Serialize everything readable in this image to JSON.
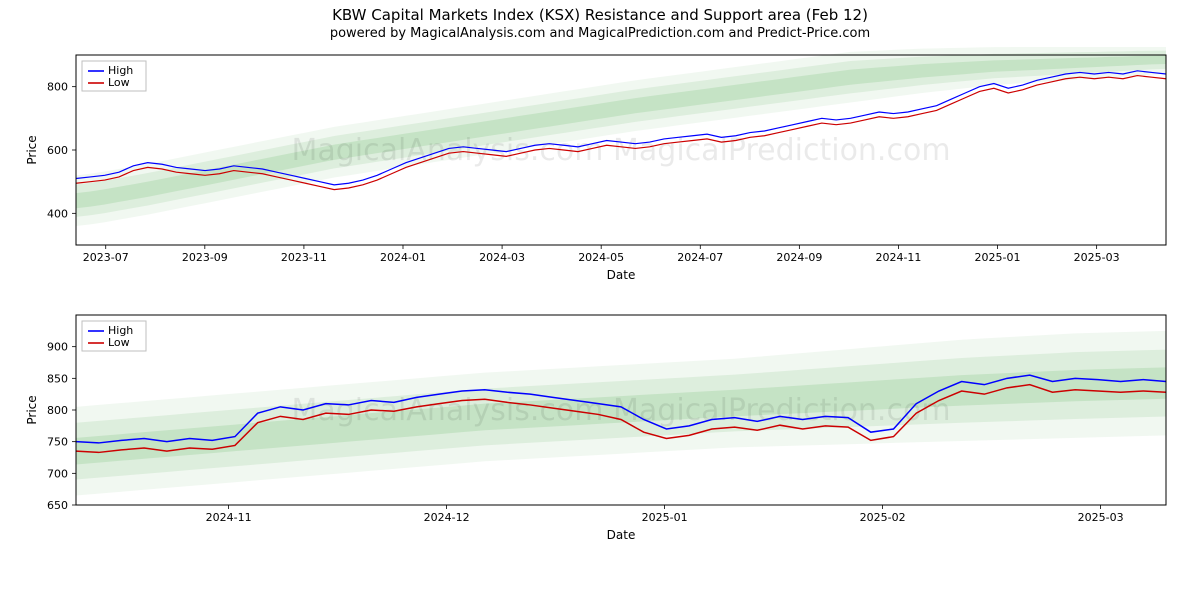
{
  "titles": {
    "main": "KBW Capital Markets Index (KSX) Resistance and Support area (Feb 12)",
    "sub": "powered by MagicalAnalysis.com and MagicalPrediction.com and Predict-Price.com"
  },
  "watermark_text": "MagicalAnalysis.com   MagicalPrediction.com",
  "legend": {
    "high": "High",
    "low": "Low",
    "high_color": "#0000ff",
    "low_color": "#cc0000"
  },
  "axis_labels": {
    "x": "Date",
    "y": "Price"
  },
  "chart_top": {
    "type": "line",
    "x_domain": [
      0,
      11
    ],
    "y_domain": [
      300,
      900
    ],
    "y_ticks": [
      400,
      600,
      800
    ],
    "x_tick_labels": [
      "2023-07",
      "2023-09",
      "2023-11",
      "2024-01",
      "2024-03",
      "2024-05",
      "2024-07",
      "2024-09",
      "2024-11",
      "2025-01",
      "2025-03"
    ],
    "x_tick_positions": [
      0.3,
      1.3,
      2.3,
      3.3,
      4.3,
      5.3,
      6.3,
      7.3,
      8.3,
      9.3,
      10.3
    ],
    "line_width": 1.2,
    "band_color": "#8fc98f",
    "band_opacity_layers": [
      0.12,
      0.2,
      0.3
    ],
    "background_color": "#ffffff",
    "border_color": "#000000",
    "high": [
      510,
      515,
      520,
      530,
      550,
      560,
      555,
      545,
      540,
      535,
      540,
      550,
      545,
      540,
      530,
      520,
      510,
      500,
      490,
      495,
      505,
      520,
      540,
      560,
      575,
      590,
      605,
      610,
      605,
      600,
      595,
      605,
      615,
      620,
      615,
      610,
      620,
      630,
      625,
      620,
      625,
      635,
      640,
      645,
      650,
      640,
      645,
      655,
      660,
      670,
      680,
      690,
      700,
      695,
      700,
      710,
      720,
      715,
      720,
      730,
      740,
      760,
      780,
      800,
      810,
      795,
      805,
      820,
      830,
      840,
      845,
      840,
      845,
      840,
      850,
      845,
      840
    ],
    "low": [
      495,
      500,
      505,
      515,
      535,
      545,
      540,
      530,
      525,
      520,
      525,
      535,
      530,
      525,
      515,
      505,
      495,
      485,
      475,
      480,
      490,
      505,
      525,
      545,
      560,
      575,
      590,
      595,
      590,
      585,
      580,
      590,
      600,
      605,
      600,
      595,
      605,
      615,
      610,
      605,
      610,
      620,
      625,
      630,
      635,
      625,
      630,
      640,
      645,
      655,
      665,
      675,
      685,
      680,
      685,
      695,
      705,
      700,
      705,
      715,
      725,
      745,
      765,
      785,
      795,
      780,
      790,
      805,
      815,
      825,
      830,
      825,
      830,
      825,
      835,
      830,
      825
    ],
    "band_lower": [
      360,
      365,
      372,
      380,
      388,
      396,
      405,
      414,
      423,
      432,
      441,
      450,
      459,
      468,
      477,
      486,
      495,
      504,
      513,
      520,
      527,
      534,
      541,
      548,
      555,
      562,
      569,
      576,
      583,
      590,
      597,
      604,
      611,
      618,
      625,
      632,
      639,
      646,
      653,
      660,
      666,
      672,
      678,
      684,
      690,
      696,
      702,
      708,
      714,
      720,
      726,
      732,
      738,
      744,
      750,
      756,
      762,
      768,
      774,
      780,
      785,
      790,
      795,
      800,
      805,
      808,
      811,
      814,
      817,
      820,
      823,
      826,
      829,
      832,
      835,
      838,
      840
    ],
    "band_upper": [
      520,
      525,
      532,
      540,
      548,
      556,
      565,
      574,
      583,
      592,
      601,
      610,
      619,
      628,
      637,
      646,
      655,
      664,
      673,
      680,
      687,
      694,
      701,
      708,
      715,
      722,
      729,
      736,
      743,
      750,
      757,
      764,
      771,
      778,
      785,
      792,
      799,
      806,
      813,
      820,
      826,
      832,
      838,
      844,
      850,
      856,
      862,
      868,
      874,
      880,
      886,
      892,
      898,
      904,
      910,
      912,
      914,
      916,
      918,
      920,
      921,
      922,
      923,
      924,
      925,
      925,
      926,
      926,
      927,
      927,
      928,
      928,
      929,
      929,
      930,
      930,
      930
    ]
  },
  "chart_bottom": {
    "type": "line",
    "x_domain": [
      0,
      5
    ],
    "y_domain": [
      650,
      950
    ],
    "y_ticks": [
      650,
      700,
      750,
      800,
      850,
      900
    ],
    "x_tick_labels": [
      "2024-11",
      "2024-12",
      "2025-01",
      "2025-02",
      "2025-03"
    ],
    "x_tick_positions": [
      0.7,
      1.7,
      2.7,
      3.7,
      4.7
    ],
    "line_width": 1.5,
    "band_color": "#8fc98f",
    "band_opacity_layers": [
      0.12,
      0.2,
      0.3
    ],
    "background_color": "#ffffff",
    "border_color": "#000000",
    "high": [
      750,
      748,
      752,
      755,
      750,
      755,
      752,
      758,
      795,
      805,
      800,
      810,
      808,
      815,
      812,
      820,
      825,
      830,
      832,
      828,
      825,
      820,
      815,
      810,
      805,
      785,
      770,
      775,
      785,
      788,
      782,
      790,
      785,
      790,
      788,
      765,
      770,
      810,
      830,
      845,
      840,
      850,
      855,
      845,
      850,
      848,
      845,
      848,
      845
    ],
    "low": [
      735,
      733,
      737,
      740,
      735,
      740,
      738,
      744,
      780,
      790,
      785,
      795,
      793,
      800,
      798,
      805,
      810,
      815,
      817,
      812,
      808,
      803,
      798,
      793,
      785,
      765,
      755,
      760,
      770,
      773,
      768,
      776,
      770,
      775,
      773,
      752,
      758,
      795,
      815,
      830,
      825,
      835,
      840,
      828,
      832,
      830,
      828,
      830,
      828
    ],
    "band_lower": [
      665,
      668,
      671,
      674,
      677,
      680,
      683,
      686,
      689,
      692,
      695,
      698,
      701,
      704,
      707,
      710,
      713,
      716,
      719,
      721,
      723,
      725,
      727,
      729,
      731,
      733,
      735,
      737,
      739,
      741,
      742,
      743,
      744,
      745,
      746,
      747,
      748,
      749,
      750,
      751,
      752,
      753,
      754,
      755,
      756,
      757,
      758,
      759,
      760
    ],
    "band_upper": [
      805,
      808,
      811,
      814,
      817,
      820,
      823,
      826,
      829,
      832,
      835,
      838,
      841,
      844,
      847,
      850,
      853,
      856,
      859,
      861,
      863,
      865,
      867,
      869,
      871,
      873,
      875,
      877,
      879,
      881,
      884,
      887,
      890,
      893,
      896,
      899,
      902,
      905,
      908,
      911,
      913,
      915,
      917,
      919,
      921,
      922,
      923,
      924,
      925
    ]
  }
}
